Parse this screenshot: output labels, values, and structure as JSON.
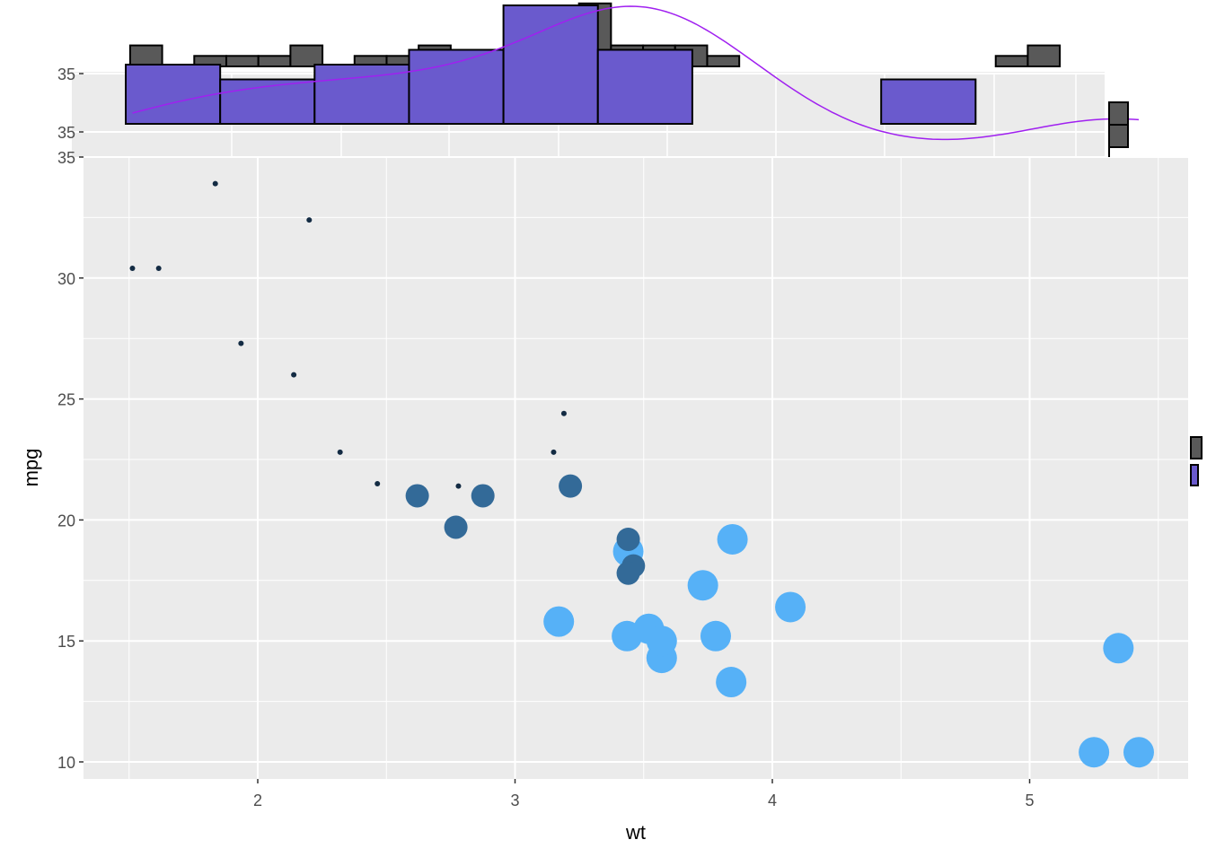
{
  "chart_data": {
    "type": "scatter",
    "xlabel": "wt",
    "ylabel": "mpg",
    "xlim": [
      1.32,
      5.62
    ],
    "ylim": [
      9.3,
      35
    ],
    "x_ticks": [
      "2",
      "3",
      "4",
      "5"
    ],
    "y_ticks": [
      "10",
      "15",
      "20",
      "25",
      "30",
      "35"
    ],
    "grid": true,
    "colors": {
      "panel": "#EBEBEB",
      "grid": "#FFFFFF",
      "hist_fill": "#6A5ACD",
      "hist_gray": "#595959",
      "density": "#A020F0",
      "cyl4": "#132B43",
      "cyl6": "#336A98",
      "cyl8": "#56B1F7"
    },
    "points": [
      {
        "wt": 2.62,
        "mpg": 21.0,
        "cyl": 6
      },
      {
        "wt": 2.875,
        "mpg": 21.0,
        "cyl": 6
      },
      {
        "wt": 2.32,
        "mpg": 22.8,
        "cyl": 4
      },
      {
        "wt": 3.215,
        "mpg": 21.4,
        "cyl": 6
      },
      {
        "wt": 3.44,
        "mpg": 18.7,
        "cyl": 8
      },
      {
        "wt": 3.46,
        "mpg": 18.1,
        "cyl": 6
      },
      {
        "wt": 3.57,
        "mpg": 14.3,
        "cyl": 8
      },
      {
        "wt": 3.19,
        "mpg": 24.4,
        "cyl": 4
      },
      {
        "wt": 3.15,
        "mpg": 22.8,
        "cyl": 4
      },
      {
        "wt": 3.44,
        "mpg": 19.2,
        "cyl": 6
      },
      {
        "wt": 3.44,
        "mpg": 17.8,
        "cyl": 6
      },
      {
        "wt": 4.07,
        "mpg": 16.4,
        "cyl": 8
      },
      {
        "wt": 3.73,
        "mpg": 17.3,
        "cyl": 8
      },
      {
        "wt": 3.78,
        "mpg": 15.2,
        "cyl": 8
      },
      {
        "wt": 5.25,
        "mpg": 10.4,
        "cyl": 8
      },
      {
        "wt": 5.424,
        "mpg": 10.4,
        "cyl": 8
      },
      {
        "wt": 5.345,
        "mpg": 14.7,
        "cyl": 8
      },
      {
        "wt": 2.2,
        "mpg": 32.4,
        "cyl": 4
      },
      {
        "wt": 1.615,
        "mpg": 30.4,
        "cyl": 4
      },
      {
        "wt": 1.835,
        "mpg": 33.9,
        "cyl": 4
      },
      {
        "wt": 2.465,
        "mpg": 21.5,
        "cyl": 4
      },
      {
        "wt": 3.52,
        "mpg": 15.5,
        "cyl": 8
      },
      {
        "wt": 3.435,
        "mpg": 15.2,
        "cyl": 8
      },
      {
        "wt": 3.84,
        "mpg": 13.3,
        "cyl": 8
      },
      {
        "wt": 3.845,
        "mpg": 19.2,
        "cyl": 8
      },
      {
        "wt": 1.935,
        "mpg": 27.3,
        "cyl": 4
      },
      {
        "wt": 2.14,
        "mpg": 26.0,
        "cyl": 4
      },
      {
        "wt": 1.513,
        "mpg": 30.4,
        "cyl": 4
      },
      {
        "wt": 3.17,
        "mpg": 15.8,
        "cyl": 8
      },
      {
        "wt": 2.77,
        "mpg": 19.7,
        "cyl": 6
      },
      {
        "wt": 3.57,
        "mpg": 15.0,
        "cyl": 8
      },
      {
        "wt": 2.78,
        "mpg": 21.4,
        "cyl": 4
      }
    ],
    "marginal": {
      "tick_labels": [
        "35",
        "35",
        "35"
      ],
      "hist_purple": {
        "start": 1.487,
        "binwidth": 0.367,
        "counts": [
          4,
          3,
          4,
          5,
          8,
          5,
          0,
          0,
          3
        ]
      },
      "hist_gray": {
        "start": 1.504,
        "binwidth": 0.1246,
        "counts": [
          2,
          0,
          1,
          1,
          1,
          2,
          0,
          1,
          1,
          2,
          0,
          0,
          0,
          0,
          6,
          2,
          2,
          2,
          1,
          0,
          0,
          0,
          0,
          0,
          0,
          0,
          0,
          1,
          2
        ]
      },
      "density": "wt"
    }
  }
}
